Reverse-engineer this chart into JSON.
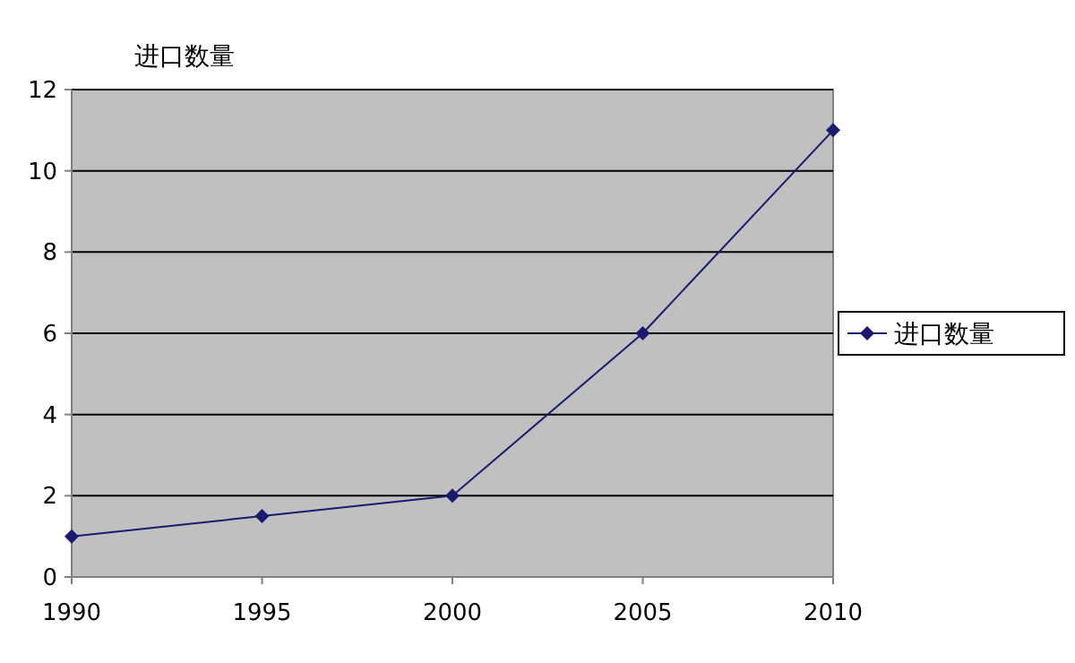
{
  "chart_data": {
    "type": "line",
    "ylabel": "进口数量",
    "x": [
      1990,
      1995,
      2000,
      2005,
      2010
    ],
    "xlim": [
      1990,
      2010
    ],
    "xticks": [
      1990,
      1995,
      2000,
      2005,
      2010
    ],
    "ylim": [
      0,
      12
    ],
    "yticks": [
      0,
      2,
      4,
      6,
      8,
      10,
      12
    ],
    "grid": "y",
    "legend": "right",
    "marker": "diamond",
    "line_style": "solid",
    "series": [
      {
        "name": "进口数量",
        "color": "#1a1a6e",
        "values": [
          1,
          1.5,
          2,
          6,
          11
        ]
      }
    ]
  }
}
